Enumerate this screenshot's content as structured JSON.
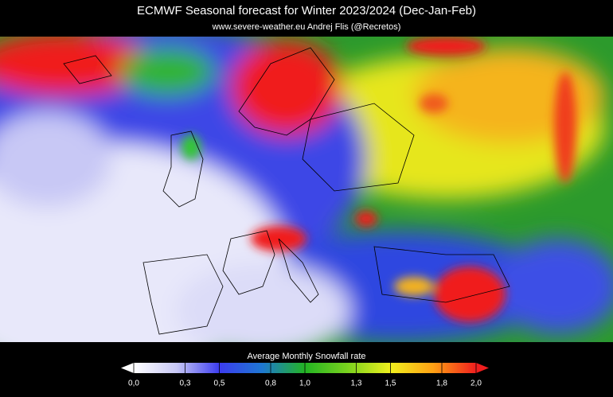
{
  "header": {
    "title": "ECMWF Seasonal forecast for Winter 2023/2024 (Dec-Jan-Feb)",
    "subtitle": "www.severe-weather.eu  Andrej Flis (@Recretos)"
  },
  "legend": {
    "label": "Average Monthly Snowfall rate",
    "lim": [
      0,
      2
    ],
    "colors": [
      "#ffffff",
      "#c8c8f5",
      "#3c3cf0",
      "#1e78d2",
      "#23b423",
      "#7ad21e",
      "#f0f01e",
      "#ffa014",
      "#f01e1e"
    ],
    "ticks": [
      {
        "value": 0,
        "label": "0,0"
      },
      {
        "value": 0.3,
        "label": "0,3"
      },
      {
        "value": 0.5,
        "label": "0,5"
      },
      {
        "value": 0.8,
        "label": "0,8"
      },
      {
        "value": 1,
        "label": "1,0"
      },
      {
        "value": 1.3,
        "label": "1,3"
      },
      {
        "value": 1.5,
        "label": "1,5"
      },
      {
        "value": 1.8,
        "label": "1,8"
      },
      {
        "value": 2,
        "label": "2,0"
      }
    ]
  }
}
